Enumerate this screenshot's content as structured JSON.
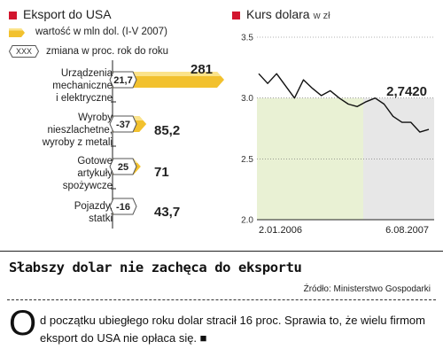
{
  "left_panel": {
    "title": "Eksport do USA",
    "legend_bar_label": "wartość w mln dol. (I-V 2007)",
    "legend_change_label": "zmiana w proc. rok do roku",
    "legend_change_symbol": "XXX"
  },
  "right_panel": {
    "title": "Kurs dolara",
    "unit": "w zł",
    "last_value_label": "2,7420",
    "x_start_label": "2.01.2006",
    "x_end_label": "6.08.2007"
  },
  "headline": "Słabszy dolar nie zachęca do eksportu",
  "source": "Źródło: Ministerstwo Gospodarki",
  "lead": {
    "dropcap": "O",
    "text": "d początku ubiegłego roku dolar stracił 16 proc. Sprawia to, że wielu firmom eksport do USA nie opłaca się. ■"
  },
  "colors": {
    "accent_red": "#d2152e",
    "bar_yellow": "#f2c12e",
    "bar_light": "#fbe38a",
    "shade_green": "#e9f1d4",
    "shade_gray": "#e7e7e7",
    "line_dark": "#222222"
  },
  "chart_data": [
    {
      "type": "bar",
      "orientation": "horizontal",
      "title": "Eksport do USA",
      "categories": [
        [
          "Urządzenia",
          "mechaniczne",
          "i elektryczne"
        ],
        [
          "Wyroby",
          "nieszlachetne,",
          "wyroby z metali"
        ],
        [
          "Gotowe",
          "artykuły",
          "spożywcze"
        ],
        [
          "Pojazdy,",
          "statki"
        ]
      ],
      "series": [
        {
          "name": "wartość w mln dol. (I-V 2007)",
          "values": [
            281,
            85.2,
            71,
            43.7
          ],
          "labels": [
            "281",
            "85,2",
            "71",
            "43,7"
          ]
        },
        {
          "name": "zmiana w proc. rok do roku",
          "values": [
            21.7,
            -37,
            25,
            -16
          ],
          "labels": [
            "21,7",
            "-37",
            "25",
            "-16"
          ]
        }
      ]
    },
    {
      "type": "line",
      "title": "Kurs dolara",
      "ylabel": "w zł",
      "ylim": [
        2.0,
        3.5
      ],
      "yticks": [
        2.0,
        2.5,
        3.0,
        3.5
      ],
      "ytick_labels": [
        "2.0",
        "2.5",
        "3.0",
        "3.5"
      ],
      "x_labels": [
        "2.01.2006",
        "6.08.2007"
      ],
      "grid": true,
      "last_value": 2.742,
      "x": [
        "2006-01",
        "2006-02",
        "2006-03",
        "2006-04",
        "2006-05",
        "2006-06",
        "2006-07",
        "2006-08",
        "2006-09",
        "2006-10",
        "2006-11",
        "2006-12",
        "2007-01",
        "2007-02",
        "2007-03",
        "2007-04",
        "2007-05",
        "2007-06",
        "2007-07",
        "2007-08"
      ],
      "y": [
        3.2,
        3.12,
        3.2,
        3.1,
        3.0,
        3.15,
        3.08,
        3.02,
        3.06,
        3.0,
        2.95,
        2.93,
        2.97,
        3.0,
        2.95,
        2.85,
        2.8,
        2.8,
        2.72,
        2.742
      ]
    }
  ]
}
